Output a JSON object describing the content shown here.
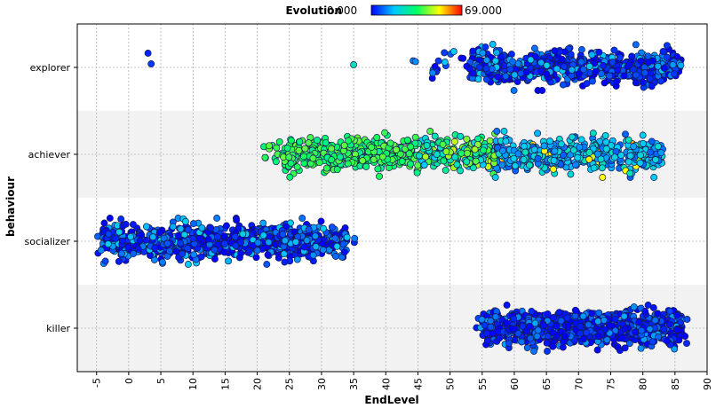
{
  "chart_data": {
    "type": "scatter",
    "title": "",
    "xlabel": "EndLevel",
    "ylabel": "behaviour",
    "xlim": [
      -8,
      90
    ],
    "xticks": [
      -5,
      0,
      5,
      10,
      15,
      20,
      25,
      30,
      35,
      40,
      45,
      50,
      55,
      60,
      65,
      70,
      75,
      80,
      85,
      90
    ],
    "categories": [
      "explorer",
      "achiever",
      "socializer",
      "killer"
    ],
    "grid": true,
    "jitter": true,
    "color_legend": {
      "title": "Evolution",
      "min_label": "0.000",
      "max_label": "69.000",
      "min": 0,
      "max": 69,
      "colormap": [
        "#0000ff",
        "#00c8ff",
        "#00ff64",
        "#ffff00",
        "#ff0000"
      ],
      "placement": "top-center"
    },
    "clusters": [
      {
        "category": "explorer",
        "x_range": [
          44,
          87
        ],
        "dense_x_range": [
          53,
          86
        ],
        "evolution_range": [
          0,
          20
        ],
        "count": 700
      },
      {
        "category": "achiever",
        "x_range": [
          20,
          84
        ],
        "dense_x_range": [
          24,
          83
        ],
        "evolution_range": [
          5,
          69
        ],
        "count": 1100
      },
      {
        "category": "socializer",
        "x_range": [
          -5,
          36
        ],
        "dense_x_range": [
          -4,
          34
        ],
        "evolution_range": [
          0,
          20
        ],
        "count": 900
      },
      {
        "category": "killer",
        "x_range": [
          54,
          87
        ],
        "dense_x_range": [
          55,
          86
        ],
        "evolution_range": [
          0,
          15
        ],
        "count": 1000
      }
    ],
    "outliers": [
      {
        "category": "explorer",
        "x": 3,
        "evolution": 3
      },
      {
        "category": "explorer",
        "x": 3.5,
        "evolution": 5
      },
      {
        "category": "explorer",
        "x": 35,
        "evolution": 25
      },
      {
        "category": "socializer",
        "x": 27,
        "evolution": 10
      }
    ]
  }
}
